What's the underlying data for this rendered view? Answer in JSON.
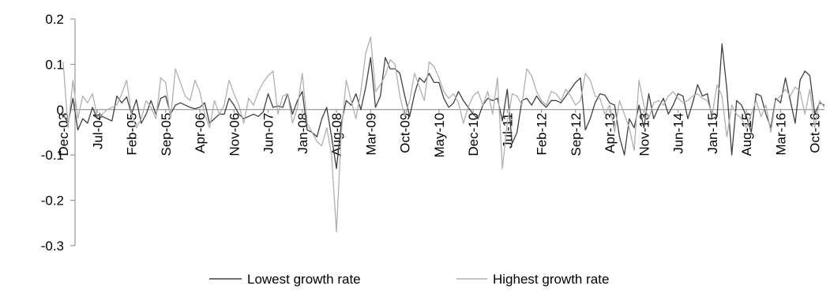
{
  "chart_data": {
    "type": "line",
    "title": "",
    "xlabel": "",
    "ylabel": "",
    "ylim": [
      -0.3,
      0.2
    ],
    "yticks": [
      0.2,
      0.1,
      0,
      -0.1,
      -0.2,
      -0.3
    ],
    "ytick_labels": [
      "0.2",
      "0.1",
      "0",
      "-0.1",
      "-0.2",
      "-0.3"
    ],
    "x_start": "Dec-03",
    "x_end": "Dec-16",
    "x_tick_labels": [
      "Dec-03",
      "Jul-04",
      "Feb-05",
      "Sep-05",
      "Apr-06",
      "Nov-06",
      "Jun-07",
      "Jan-08",
      "Aug-08",
      "Mar-09",
      "Oct-09",
      "May-10",
      "Dec-10",
      "Jul-11",
      "Feb-12",
      "Sep-12",
      "Apr-13",
      "Nov-13",
      "Jun-14",
      "Jan-15",
      "Aug-15",
      "Mar-16",
      "Oct-16"
    ],
    "grid": false,
    "legend_position": "bottom",
    "series": [
      {
        "name": "Lowest growth rate",
        "color": "#404040",
        "values": [
          -0.01,
          -0.03,
          0.025,
          -0.045,
          -0.02,
          -0.03,
          0.005,
          -0.02,
          -0.015,
          -0.02,
          -0.025,
          0.03,
          0.015,
          0.028,
          -0.01,
          0.022,
          -0.03,
          -0.01,
          0.02,
          -0.01,
          0.025,
          0.03,
          -0.01,
          0.01,
          0.015,
          0.01,
          0.005,
          0.002,
          0.005,
          0.015,
          -0.03,
          -0.02,
          -0.01,
          -0.01,
          0.025,
          0.01,
          -0.01,
          -0.02,
          -0.015,
          -0.01,
          -0.015,
          -0.005,
          0.035,
          0.005,
          0.008,
          0.005,
          0.035,
          -0.01,
          0.02,
          0.04,
          -0.045,
          -0.05,
          -0.06,
          -0.02,
          0.005,
          -0.06,
          -0.13,
          -0.03,
          0.02,
          0.01,
          0.035,
          0,
          0.05,
          0.115,
          0.005,
          0.03,
          0.115,
          0.09,
          0.09,
          0.08,
          0.03,
          -0.015,
          0.035,
          0.07,
          0.06,
          0.08,
          0.06,
          0.06,
          0.025,
          0.005,
          0.015,
          0.04,
          0.02,
          0.005,
          -0.01,
          -0.02,
          0.01,
          0.025,
          0.02,
          0.025,
          -0.025,
          0.045,
          -0.075,
          -0.05,
          0.02,
          0.025,
          0.01,
          0.03,
          0.015,
          0.005,
          0.02,
          0.02,
          0.015,
          0.03,
          0.045,
          0.06,
          0.07,
          -0.045,
          -0.02,
          0.015,
          0.035,
          0.032,
          0.015,
          0.01,
          -0.06,
          -0.1,
          -0.02,
          -0.04,
          0.01,
          -0.04,
          0.035,
          -0.02,
          0.005,
          0.025,
          -0.01,
          0.01,
          0.035,
          0.03,
          -0.02,
          0.015,
          0.055,
          0.03,
          0.035,
          -0.02,
          -0.015,
          0.145,
          0.045,
          -0.1,
          0.02,
          0.01,
          -0.015,
          -0.05,
          0.035,
          0.03,
          -0.01,
          -0.04,
          0.025,
          0.015,
          0.07,
          0.02,
          -0.03,
          0.065,
          0.085,
          0.075,
          -0.01,
          0.015,
          0.01
        ]
      },
      {
        "name": "Highest growth rate",
        "color": "#b0b0b0",
        "values": [
          0.105,
          -0.04,
          0.065,
          -0.02,
          0.03,
          0.015,
          0.035,
          -0.015,
          -0.01,
          0,
          0.005,
          0.01,
          0.035,
          0.065,
          -0.01,
          -0.04,
          -0.02,
          0.02,
          0.005,
          -0.02,
          0.07,
          0.06,
          -0.02,
          0.09,
          0.06,
          0.03,
          0.02,
          0.065,
          0.04,
          -0.01,
          -0.04,
          0.02,
          -0.01,
          0.01,
          0.065,
          0.035,
          0.01,
          -0.03,
          0.025,
          0.01,
          0.04,
          0.06,
          0.075,
          0.085,
          -0.01,
          0.03,
          0.035,
          -0.03,
          0.005,
          0.08,
          -0.03,
          -0.05,
          -0.07,
          -0.08,
          -0.04,
          -0.1,
          -0.27,
          -0.05,
          0.065,
          0.02,
          -0.02,
          0.04,
          0.125,
          0.16,
          0.04,
          0.055,
          0.075,
          0.11,
          0.1,
          0.03,
          -0.015,
          0.02,
          0.08,
          0.05,
          0.02,
          0.105,
          0.095,
          0.07,
          0.04,
          0.025,
          0.035,
          0.015,
          -0.03,
          0.005,
          0.03,
          0.04,
          0.01,
          0.04,
          -0.01,
          0.07,
          -0.13,
          -0.03,
          0.035,
          0.03,
          0.01,
          0.09,
          0.075,
          0.04,
          0.02,
          0.01,
          0.04,
          0.035,
          0.02,
          0.045,
          0.03,
          0.01,
          0.02,
          0.08,
          0.065,
          0.03,
          0.025,
          -0.01,
          0.01,
          -0.05,
          0.02,
          -0.01,
          -0.04,
          -0.09,
          0.065,
          0.01,
          -0.02,
          0.015,
          0.02,
          0.01,
          0.03,
          0.04,
          0.025,
          0.015,
          0.02,
          0.03,
          0.035,
          0.025,
          0.02,
          -0.01,
          0.055,
          0.03,
          -0.06,
          0.01,
          -0.01,
          -0.02,
          -0.04,
          -0.01,
          0.02,
          -0.015,
          0.01,
          -0.05,
          0.02,
          0.03,
          0.045,
          0.03,
          0.05,
          0.04,
          -0.01,
          0.045,
          -0.04,
          0.02,
          0.005
        ]
      }
    ]
  }
}
